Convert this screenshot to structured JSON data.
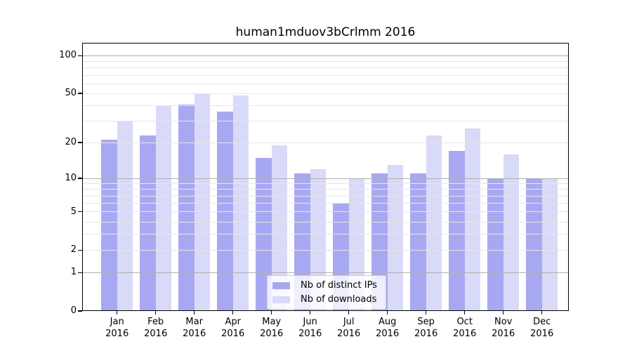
{
  "figure": {
    "title": "human1mduov3bCrlmm 2016"
  },
  "chart_data": {
    "type": "bar",
    "title": "human1mduov3bCrlmm 2016",
    "categories": [
      "Jan 2016",
      "Feb 2016",
      "Mar 2016",
      "Apr 2016",
      "May 2016",
      "Jun 2016",
      "Jul 2016",
      "Aug 2016",
      "Sep 2016",
      "Oct 2016",
      "Nov 2016",
      "Dec 2016"
    ],
    "x_months": [
      "Jan",
      "Feb",
      "Mar",
      "Apr",
      "May",
      "Jun",
      "Jul",
      "Aug",
      "Sep",
      "Oct",
      "Nov",
      "Dec"
    ],
    "x_year": "2016",
    "series": [
      {
        "name": "Nb of distinct IPs",
        "color": "#a8a8f2",
        "values": [
          21,
          23,
          41,
          36,
          15,
          11,
          6,
          11,
          11,
          17,
          10,
          10
        ]
      },
      {
        "name": "Nb of downloads",
        "color": "#d9d9f8",
        "values": [
          30,
          40,
          50,
          48,
          19,
          12,
          10,
          13,
          23,
          26,
          16,
          10
        ]
      }
    ],
    "y_axis": {
      "scale": "log1p",
      "tick_values": [
        100,
        50,
        20,
        10,
        5,
        2,
        1,
        0
      ],
      "ylim": [
        0,
        126
      ]
    },
    "grid": {
      "on": true,
      "major_lines": [
        1,
        10,
        100
      ],
      "minor_lines": [
        2,
        3,
        4,
        5,
        6,
        7,
        8,
        9,
        20,
        30,
        40,
        50,
        60,
        70,
        80,
        90
      ],
      "major_color": "#b0b0b0",
      "minor_color": "#e7e7e7"
    },
    "legend": {
      "position": "lower center inside",
      "entries": [
        "Nb of distinct IPs",
        "Nb of downloads"
      ]
    }
  },
  "colors": {
    "background": "#ffffff",
    "axis": "#000000",
    "bar_distinct_ips": "#a8a8f2",
    "bar_downloads": "#d9d9f8"
  }
}
